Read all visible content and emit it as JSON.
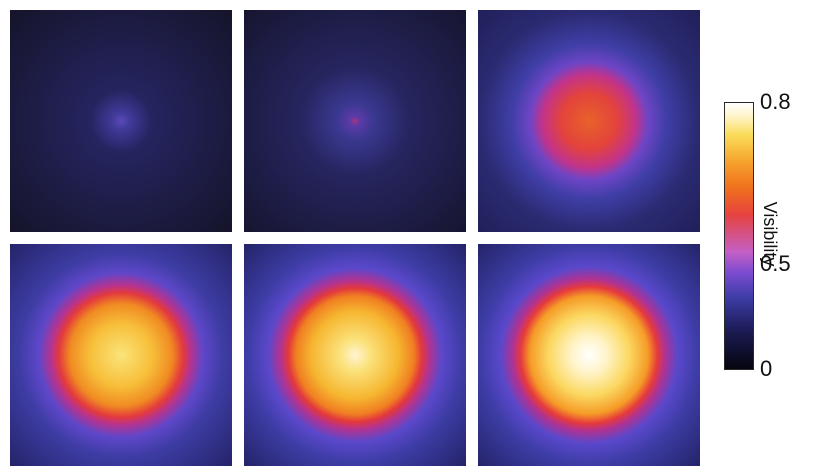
{
  "colorbar": {
    "label": "Visibility",
    "ticks": [
      "0.8",
      "0.5",
      "0"
    ],
    "colormap": [
      "#05050f",
      "#1b1a52",
      "#3d3da7",
      "#7a4bd0",
      "#c45fc5",
      "#e6433f",
      "#f0701e",
      "#f6a32c",
      "#fadc5a",
      "#fff4c8",
      "#ffffff"
    ]
  },
  "panels": [
    {
      "name": "panel-1",
      "peak_visibility": 0.2,
      "spot_size": "tiny"
    },
    {
      "name": "panel-2",
      "peak_visibility": 0.3,
      "spot_size": "tiny"
    },
    {
      "name": "panel-3",
      "peak_visibility": 0.55,
      "spot_size": "small"
    },
    {
      "name": "panel-4",
      "peak_visibility": 0.72,
      "spot_size": "large"
    },
    {
      "name": "panel-5",
      "peak_visibility": 0.78,
      "spot_size": "large"
    },
    {
      "name": "panel-6",
      "peak_visibility": 0.8,
      "spot_size": "large"
    }
  ]
}
